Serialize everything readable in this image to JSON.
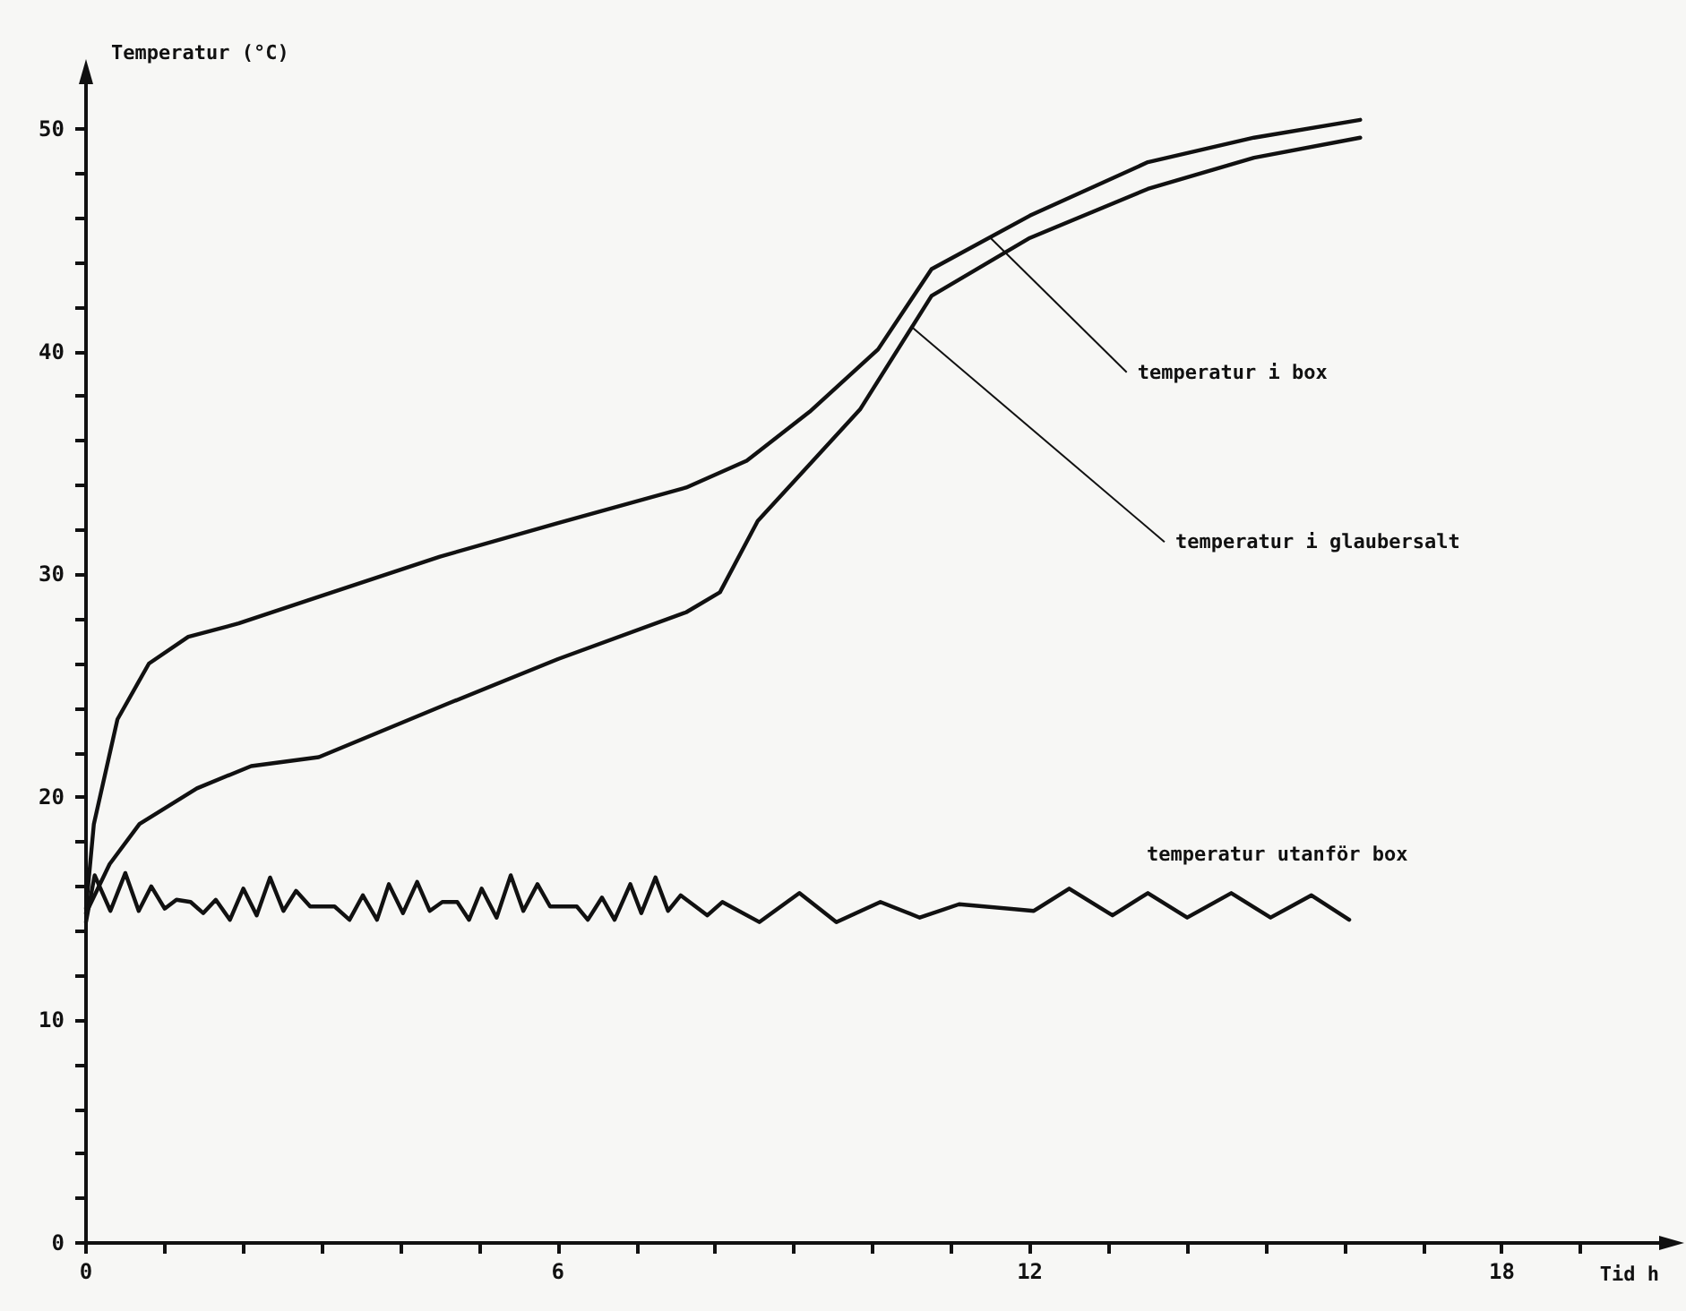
{
  "chart_data": {
    "type": "line",
    "ylabel": "Temperatur (°C)",
    "xlabel": "Tid h",
    "xlim": [
      0,
      20
    ],
    "ylim": [
      0,
      52
    ],
    "xticks": [
      0,
      {
        "value": 1,
        "label": null
      },
      {
        "value": 2,
        "label": null
      },
      {
        "value": 3,
        "label": null
      },
      {
        "value": 4,
        "label": null
      },
      {
        "value": 5,
        "label": null
      },
      6,
      {
        "value": 7,
        "label": null
      },
      {
        "value": 8,
        "label": null
      },
      {
        "value": 9,
        "label": null
      },
      {
        "value": 10,
        "label": null
      },
      {
        "value": 11,
        "label": null
      },
      12,
      {
        "value": 13,
        "label": null
      },
      {
        "value": 14,
        "label": null
      },
      {
        "value": 15,
        "label": null
      },
      {
        "value": 16,
        "label": null
      },
      {
        "value": 17,
        "label": null
      },
      18,
      {
        "value": 19,
        "label": null
      }
    ],
    "yticks": [
      0,
      {
        "value": 2,
        "label": null
      },
      {
        "value": 4,
        "label": null
      },
      {
        "value": 6,
        "label": null
      },
      {
        "value": 8,
        "label": null
      },
      10,
      {
        "value": 12,
        "label": null
      },
      {
        "value": 14,
        "label": null
      },
      {
        "value": 16,
        "label": null
      },
      {
        "value": 18,
        "label": null
      },
      20,
      {
        "value": 22,
        "label": null
      },
      {
        "value": 24,
        "label": null
      },
      {
        "value": 26,
        "label": null
      },
      {
        "value": 28,
        "label": null
      },
      30,
      {
        "value": 32,
        "label": null
      },
      {
        "value": 34,
        "label": null
      },
      {
        "value": 36,
        "label": null
      },
      {
        "value": 38,
        "label": null
      },
      40,
      {
        "value": 42,
        "label": null
      },
      {
        "value": 44,
        "label": null
      },
      {
        "value": 46,
        "label": null
      },
      {
        "value": 48,
        "label": null
      },
      50
    ],
    "grid": false,
    "legend": false,
    "marker": "none",
    "line_style": "solid",
    "series": [
      {
        "color": "#111111",
        "x": [
          0,
          0.1,
          0.4,
          0.8,
          1.3,
          1.94,
          2.96,
          4.5,
          6.0,
          7.63,
          8.4,
          9.2,
          10.07,
          10.75,
          12.0,
          13.5,
          14.85,
          16.2
        ],
        "values": [
          15,
          18.8,
          23.5,
          26,
          27.2,
          27.8,
          29,
          30.8,
          32.3,
          33.9,
          35.1,
          37.3,
          40.1,
          43.7,
          46.1,
          48.5,
          49.6,
          50.4
        ]
      },
      {
        "color": "#111111",
        "x": [
          0,
          0.3,
          0.68,
          1.41,
          2.1,
          2.96,
          4.6,
          6.0,
          7.63,
          8.06,
          8.54,
          9.84,
          10.75,
          12.0,
          13.5,
          14.85,
          16.2
        ],
        "values": [
          14.8,
          17,
          18.8,
          20.4,
          21.4,
          21.8,
          24.2,
          26.2,
          28.3,
          29.2,
          32.4,
          37.4,
          42.5,
          45.1,
          47.3,
          48.7,
          49.6
        ]
      },
      {
        "name": "temperatur utanför box",
        "color": "#111111",
        "x": [
          0,
          0.11,
          0.31,
          0.5,
          0.67,
          0.83,
          1.0,
          1.15,
          1.33,
          1.49,
          1.65,
          1.83,
          2.0,
          2.17,
          2.34,
          2.51,
          2.67,
          2.85,
          3.16,
          3.35,
          3.52,
          3.7,
          3.85,
          4.03,
          4.21,
          4.37,
          4.53,
          4.72,
          4.87,
          5.03,
          5.22,
          5.4,
          5.56,
          5.74,
          5.9,
          6.24,
          6.38,
          6.56,
          6.72,
          6.92,
          7.06,
          7.24,
          7.4,
          7.56,
          7.9,
          8.09,
          8.56,
          9.07,
          9.54,
          10.1,
          10.6,
          11.1,
          12.05,
          12.5,
          13.05,
          13.5,
          14.0,
          14.56,
          15.06,
          15.58,
          16.06
        ],
        "values": [
          14.4,
          16.5,
          14.9,
          16.6,
          14.9,
          16.0,
          15.0,
          15.4,
          15.3,
          14.8,
          15.4,
          14.5,
          15.9,
          14.7,
          16.4,
          14.9,
          15.8,
          15.1,
          15.1,
          14.5,
          15.6,
          14.5,
          16.1,
          14.8,
          16.2,
          14.9,
          15.3,
          15.3,
          14.5,
          15.9,
          14.6,
          16.5,
          14.9,
          16.1,
          15.1,
          15.1,
          14.5,
          15.5,
          14.5,
          16.1,
          14.8,
          16.4,
          14.9,
          15.6,
          14.7,
          15.3,
          14.4,
          15.7,
          14.4,
          15.3,
          14.6,
          15.2,
          14.9,
          15.9,
          14.7,
          15.7,
          14.6,
          15.7,
          14.6,
          15.6,
          14.5
        ]
      }
    ],
    "annotations": [
      {
        "text": "temperatur i box",
        "x": 11.5,
        "y": 45.1
      },
      {
        "text": "temperatur i glaubersalt",
        "x": 10.5,
        "y": 41.1
      }
    ]
  }
}
